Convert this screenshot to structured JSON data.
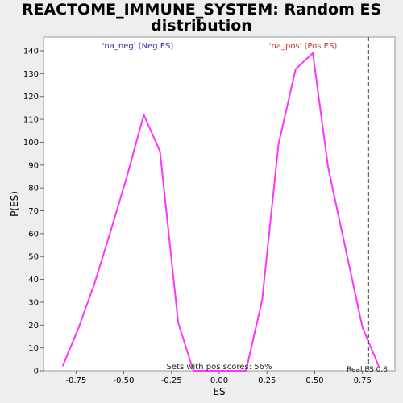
{
  "chart_data": {
    "type": "line",
    "title_line1": "REACTOME_IMMUNE_SYSTEM: Random ES",
    "title_line2": "distribution",
    "xlabel": "ES",
    "ylabel": "P(ES)",
    "xlim": [
      -0.92,
      0.92
    ],
    "ylim": [
      0,
      146
    ],
    "xticks": [
      -0.75,
      -0.5,
      -0.25,
      0.0,
      0.25,
      0.5,
      0.75
    ],
    "xtick_labels": [
      "-0.75",
      "-0.50",
      "-0.25",
      "0.00",
      "0.25",
      "0.50",
      "0.75"
    ],
    "yticks": [
      0,
      10,
      20,
      30,
      40,
      50,
      60,
      70,
      80,
      90,
      100,
      110,
      120,
      130,
      140
    ],
    "grid": false,
    "series": [
      {
        "color": "#ff33ff",
        "x": [
          -0.82,
          -0.735,
          -0.65,
          -0.565,
          -0.48,
          -0.395,
          -0.31,
          -0.215,
          -0.135,
          -0.05,
          0.05,
          0.14,
          0.225,
          0.31,
          0.4,
          0.49,
          0.57,
          0.665,
          0.75,
          0.835
        ],
        "y": [
          2,
          19,
          39,
          62,
          86,
          112,
          96,
          21,
          0,
          0,
          0,
          0,
          31,
          99,
          132,
          139,
          89,
          52,
          19,
          2
        ]
      }
    ],
    "annotations": {
      "neg_label": "'na_neg' (Neg ES)",
      "pos_label": "'na_pos' (Pos ES)",
      "sets_label": "Sets with pos scores: 56%",
      "real_es_label": "Real ES 0.8",
      "real_es_value": 0.78
    },
    "colors": {
      "line": "#ff33ff",
      "neg_label": "#3333aa",
      "pos_label": "#cc3333",
      "marker": "#444444"
    }
  }
}
